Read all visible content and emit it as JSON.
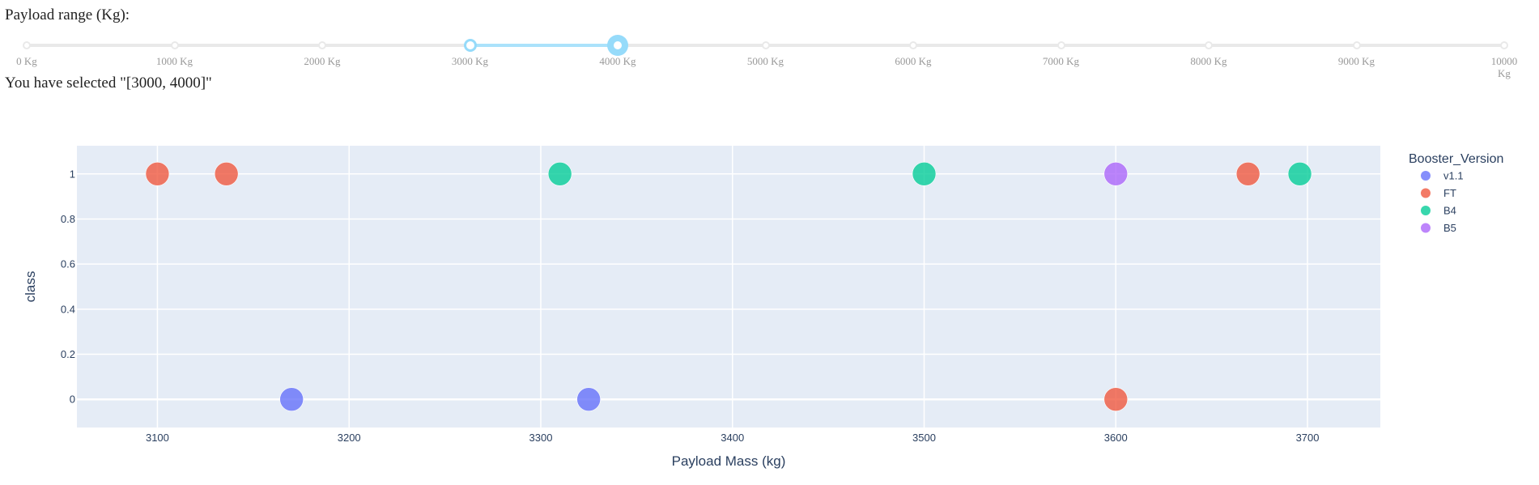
{
  "slider": {
    "label": "Payload range (Kg):",
    "min": 0,
    "max": 10000,
    "step": 1000,
    "value": [
      3000,
      4000
    ],
    "marks": [
      "0 Kg",
      "1000 Kg",
      "2000 Kg",
      "3000 Kg",
      "4000 Kg",
      "5000 Kg",
      "6000 Kg",
      "7000 Kg",
      "8000 Kg",
      "9000 Kg",
      "10000 Kg"
    ],
    "selected_text": "You have selected \"[3000, 4000]\"",
    "rail_color": "#e9e9e9",
    "track_color": "#abe2fb",
    "handle_color": "#96dbfa"
  },
  "chart_data": {
    "type": "scatter",
    "xlabel": "Payload Mass (kg)",
    "ylabel": "class",
    "xlim": [
      3058,
      3738
    ],
    "ylim": [
      -0.125,
      1.125
    ],
    "xticks": [
      3100,
      3200,
      3300,
      3400,
      3500,
      3600,
      3700
    ],
    "yticks": [
      0,
      0.2,
      0.4,
      0.6,
      0.8,
      1
    ],
    "ytick_labels": [
      "0",
      "0.2",
      "0.4",
      "0.6",
      "0.8",
      "1"
    ],
    "grid": true,
    "background": "#e5ecf6",
    "legend": {
      "title": "Booster_Version",
      "position": "right"
    },
    "series": [
      {
        "name": "v1.1",
        "color": "#636efa",
        "points": [
          [
            3170,
            0
          ],
          [
            3325,
            0
          ]
        ]
      },
      {
        "name": "FT",
        "color": "#ef553b",
        "points": [
          [
            3100,
            1
          ],
          [
            3136,
            1
          ],
          [
            3600,
            0
          ],
          [
            3669,
            1
          ]
        ]
      },
      {
        "name": "B4",
        "color": "#00cc96",
        "points": [
          [
            3310,
            1
          ],
          [
            3500,
            1
          ],
          [
            3696,
            1
          ]
        ]
      },
      {
        "name": "B5",
        "color": "#ab63fa",
        "points": [
          [
            3600,
            1
          ]
        ]
      }
    ]
  }
}
